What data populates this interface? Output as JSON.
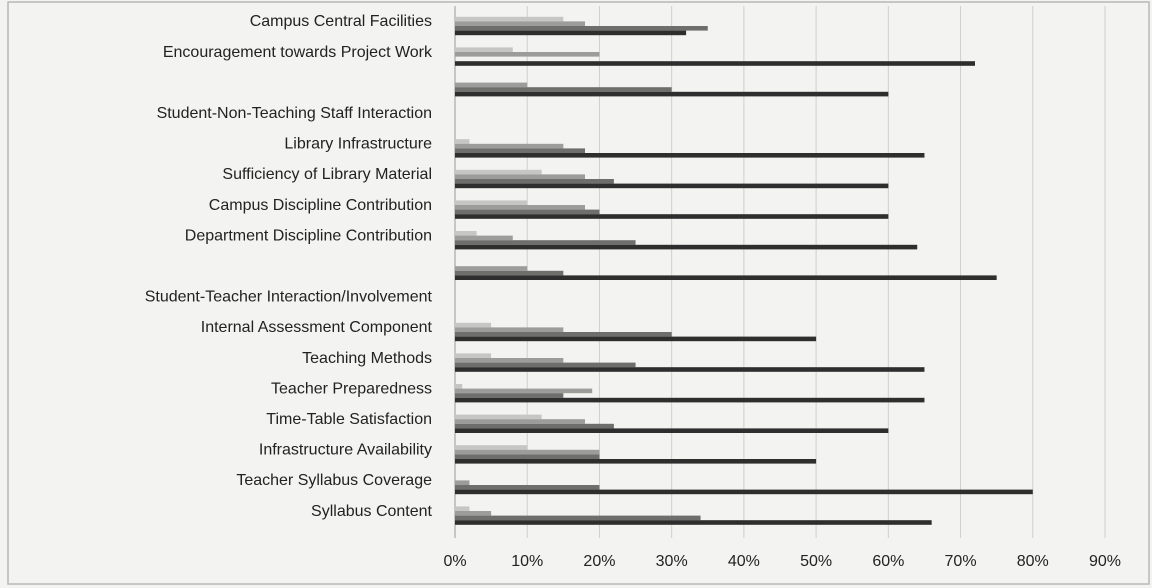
{
  "chart_data": {
    "type": "bar",
    "orientation": "horizontal",
    "categories": [
      "Campus Central Facilities",
      "Encouragement towards Project Work",
      null,
      "Student-Non-Teaching Staff Interaction",
      "Library Infrastructure",
      "Sufficiency of Library Material",
      "Campus Discipline Contribution",
      "Department Discipline Contribution",
      null,
      "Student-Teacher Interaction/Involvement",
      "Internal Assessment Component",
      "Teaching Methods",
      "Teacher Preparedness",
      "Time-Table Satisfaction",
      "Infrastructure Availability",
      "Teacher Syllabus Coverage",
      "Syllabus Content"
    ],
    "series": [
      {
        "color": "#c6c6c4",
        "values": [
          15,
          8,
          0,
          0,
          2,
          12,
          10,
          3,
          0,
          0,
          5,
          5,
          1,
          12,
          10,
          0,
          2
        ]
      },
      {
        "color": "#9c9c9a",
        "values": [
          18,
          20,
          10,
          0,
          15,
          18,
          18,
          8,
          10,
          0,
          15,
          15,
          19,
          18,
          20,
          2,
          5
        ]
      },
      {
        "color": "#6e6e6c",
        "values": [
          35,
          0,
          30,
          0,
          18,
          22,
          20,
          25,
          15,
          0,
          30,
          25,
          15,
          22,
          20,
          20,
          34
        ]
      },
      {
        "color": "#2e2e2e",
        "values": [
          32,
          72,
          60,
          0,
          65,
          60,
          60,
          64,
          75,
          0,
          50,
          65,
          65,
          60,
          50,
          80,
          66
        ]
      }
    ],
    "xlim": [
      0,
      90
    ],
    "xticks": [
      {
        "value": 0,
        "label": "0%"
      },
      {
        "value": 10,
        "label": "10%"
      },
      {
        "value": 20,
        "label": "20%"
      },
      {
        "value": 30,
        "label": "30%"
      },
      {
        "value": 40,
        "label": "40%"
      },
      {
        "value": 50,
        "label": "50%"
      },
      {
        "value": 60,
        "label": "60%"
      },
      {
        "value": 70,
        "label": "70%"
      },
      {
        "value": 80,
        "label": "80%"
      },
      {
        "value": 90,
        "label": "90%"
      }
    ],
    "grid": true
  }
}
